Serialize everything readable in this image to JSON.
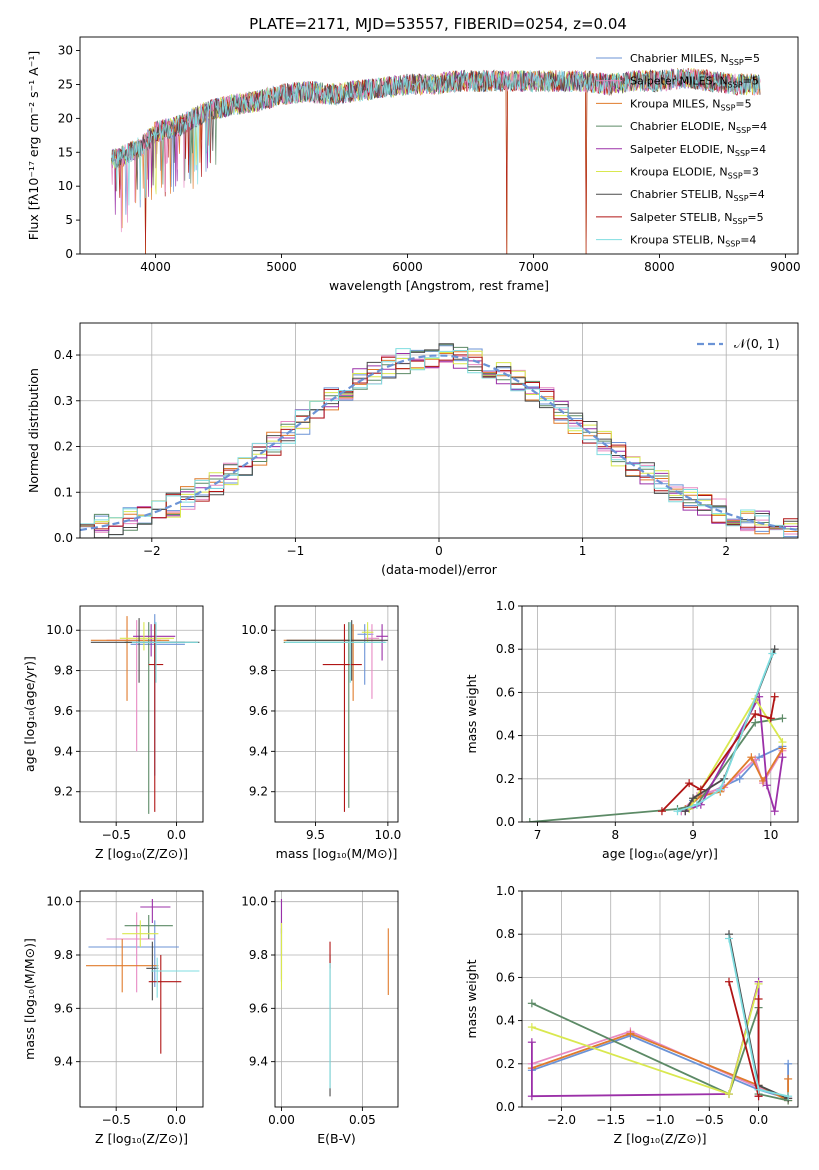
{
  "figure": {
    "title": "PLATE=2171, MJD=53557, FIBERID=0254, z=0.04"
  },
  "legend_models": [
    {
      "name": "Chabrier MILES, N",
      "sub": "SSP",
      "suffix": "=5",
      "color": "#6b93d6"
    },
    {
      "name": "Salpeter MILES, N",
      "sub": "SSP",
      "suffix": "=5",
      "color": "#e78ac3"
    },
    {
      "name": "Kroupa MILES, N",
      "sub": "SSP",
      "suffix": "=5",
      "color": "#e07b2c"
    },
    {
      "name": "Chabrier ELODIE, N",
      "sub": "SSP",
      "suffix": "=4",
      "color": "#5c8a66"
    },
    {
      "name": "Salpeter ELODIE, N",
      "sub": "SSP",
      "suffix": "=4",
      "color": "#9b30a8"
    },
    {
      "name": "Kroupa ELODIE, N",
      "sub": "SSP",
      "suffix": "=3",
      "color": "#d9e84f"
    },
    {
      "name": "Chabrier STELIB, N",
      "sub": "SSP",
      "suffix": "=4",
      "color": "#4a4a4a"
    },
    {
      "name": "Salpeter STELIB, N",
      "sub": "SSP",
      "suffix": "=5",
      "color": "#b01515"
    },
    {
      "name": "Kroupa STELIB, N",
      "sub": "SSP",
      "suffix": "=4",
      "color": "#7fdde0"
    }
  ],
  "chart_data": [
    {
      "id": "spectrum",
      "type": "line",
      "xlabel": "wavelength [Angstrom, rest frame]",
      "ylabel": "Flux [fλ10⁻¹⁷ erg cm⁻² s⁻¹ A⁻¹]",
      "xlim": [
        3400,
        9100
      ],
      "ylim": [
        0,
        32
      ],
      "xticks": [
        4000,
        5000,
        6000,
        7000,
        8000,
        9000
      ],
      "yticks": [
        0,
        5,
        10,
        15,
        20,
        25,
        30
      ],
      "grid": false,
      "legend": "right",
      "envelope": {
        "x": [
          3650,
          3700,
          3800,
          3900,
          4000,
          4200,
          4400,
          4600,
          4800,
          5000,
          5200,
          5400,
          5600,
          5800,
          6000,
          6200,
          6400,
          6600,
          6800,
          7000,
          7200,
          7400,
          7600,
          7800,
          8000,
          8200,
          8400,
          8600,
          8800
        ],
        "y": [
          14,
          14,
          15,
          16,
          18,
          19,
          21,
          22,
          22.5,
          23.5,
          24,
          23.5,
          24,
          24.5,
          25,
          25,
          25.5,
          25.5,
          25.5,
          25.5,
          25.5,
          25.5,
          25,
          25.5,
          25.5,
          26,
          25.5,
          25,
          25
        ]
      },
      "dropouts": [
        3920,
        6790,
        7420
      ]
    },
    {
      "id": "residuals",
      "type": "step",
      "xlabel": "(data-model)/error",
      "ylabel": "Normed distribution",
      "xlim": [
        -2.5,
        2.5
      ],
      "ylim": [
        0,
        0.47
      ],
      "xticks": [
        -2,
        -1,
        0,
        1,
        2
      ],
      "yticks": [
        0.0,
        0.1,
        0.2,
        0.3,
        0.4
      ],
      "grid": true,
      "legend": "top-right",
      "reference": {
        "name": "𝒩(0, 1)",
        "mean": 0,
        "sigma": 1,
        "color": "#6b93d6"
      },
      "bin_width": 0.1
    },
    {
      "id": "age-vs-Z",
      "type": "errorbar",
      "xlabel": "Z [log₁₀(Z/Z⊙)]",
      "ylabel": "age  [log₁₀(age/yr)]",
      "xlim": [
        -0.8,
        0.22
      ],
      "ylim": [
        9.05,
        10.12
      ],
      "xticks": [
        -0.5,
        0.0
      ],
      "yticks": [
        9.2,
        9.4,
        9.6,
        9.8,
        10.0
      ],
      "grid": true,
      "points": [
        {
          "x": -0.18,
          "xerr": [
            0.2,
            0.25
          ],
          "y": 9.93,
          "yerr": [
            0.65,
            0.15
          ]
        },
        {
          "x": -0.33,
          "xerr": [
            0.25,
            0.2
          ],
          "y": 9.95,
          "yerr": [
            0.55,
            0.1
          ]
        },
        {
          "x": -0.41,
          "xerr": [
            0.3,
            0.35
          ],
          "y": 9.95,
          "yerr": [
            0.3,
            0.12
          ]
        },
        {
          "x": -0.23,
          "xerr": [
            0.2,
            0.3
          ],
          "y": 9.94,
          "yerr": [
            0.85,
            0.1
          ]
        },
        {
          "x": -0.21,
          "xerr": [
            0.15,
            0.2
          ],
          "y": 9.97,
          "yerr": [
            0.1,
            0.06
          ]
        },
        {
          "x": -0.27,
          "xerr": [
            0.2,
            0.25
          ],
          "y": 9.96,
          "yerr": [
            0.06,
            0.08
          ]
        },
        {
          "x": -0.31,
          "xerr": [
            0.4,
            0.5
          ],
          "y": 9.94,
          "yerr": [
            0.2,
            0.12
          ]
        },
        {
          "x": -0.18,
          "xerr": [
            0.05,
            0.07
          ],
          "y": 9.83,
          "yerr": [
            0.73,
            0.2
          ]
        },
        {
          "x": -0.17,
          "xerr": [
            0.2,
            0.35
          ],
          "y": 9.94,
          "yerr": [
            0.2,
            0.1
          ]
        }
      ]
    },
    {
      "id": "age-vs-mass",
      "type": "errorbar",
      "xlabel": "mass [log₁₀(M/M⊙)]",
      "ylabel": "",
      "xlim": [
        9.22,
        10.07
      ],
      "ylim": [
        9.05,
        10.12
      ],
      "xticks": [
        9.5,
        10.0
      ],
      "yticks": [
        9.2,
        9.4,
        9.6,
        9.8,
        10.0
      ],
      "grid": true,
      "points": [
        {
          "x": 9.84,
          "xerr": [
            0.05,
            0.06
          ],
          "y": 9.98,
          "yerr": [
            0.25,
            0.05
          ]
        },
        {
          "x": 9.89,
          "xerr": [
            0.05,
            0.05
          ],
          "y": 9.96,
          "yerr": [
            0.3,
            0.07
          ]
        },
        {
          "x": 9.76,
          "xerr": [
            0.48,
            0.2
          ],
          "y": 9.95,
          "yerr": [
            0.3,
            0.08
          ]
        },
        {
          "x": 9.73,
          "xerr": [
            0.45,
            0.25
          ],
          "y": 9.94,
          "yerr": [
            0.82,
            0.1
          ]
        },
        {
          "x": 9.96,
          "xerr": [
            0.04,
            0.04
          ],
          "y": 9.97,
          "yerr": [
            0.12,
            0.06
          ]
        },
        {
          "x": 9.86,
          "xerr": [
            0.04,
            0.04
          ],
          "y": 9.99,
          "yerr": [
            0.05,
            0.05
          ]
        },
        {
          "x": 9.75,
          "xerr": [
            0.45,
            0.25
          ],
          "y": 9.95,
          "yerr": [
            0.2,
            0.1
          ]
        },
        {
          "x": 9.7,
          "xerr": [
            0.15,
            0.12
          ],
          "y": 9.83,
          "yerr": [
            0.73,
            0.2
          ]
        },
        {
          "x": 9.74,
          "xerr": [
            0.45,
            0.25
          ],
          "y": 9.94,
          "yerr": [
            0.2,
            0.1
          ]
        }
      ]
    },
    {
      "id": "massweight-vs-age",
      "type": "line",
      "xlabel": "age  [log₁₀(age/yr)]",
      "ylabel": "mass weight",
      "xlim": [
        6.8,
        10.35
      ],
      "ylim": [
        0,
        1.0
      ],
      "xticks": [
        7,
        8,
        9,
        10
      ],
      "yticks": [
        0.0,
        0.2,
        0.4,
        0.6,
        0.8,
        1.0
      ],
      "grid": true,
      "series": [
        {
          "x": [
            8.85,
            9.0,
            9.6,
            9.85,
            10.15
          ],
          "y": [
            0.05,
            0.1,
            0.2,
            0.3,
            0.35
          ]
        },
        {
          "x": [
            8.85,
            9.05,
            9.4,
            9.8,
            9.9,
            10.15
          ],
          "y": [
            0.05,
            0.12,
            0.16,
            0.29,
            0.18,
            0.33
          ]
        },
        {
          "x": [
            8.9,
            9.1,
            9.35,
            9.75,
            9.9,
            10.15
          ],
          "y": [
            0.06,
            0.12,
            0.14,
            0.3,
            0.19,
            0.34
          ]
        },
        {
          "x": [
            6.9,
            8.8,
            9.05,
            9.8,
            10.15
          ],
          "y": [
            0.0,
            0.06,
            0.08,
            0.46,
            0.48
          ]
        },
        {
          "x": [
            8.9,
            9.1,
            9.85,
            9.95,
            10.05,
            10.15
          ],
          "y": [
            0.05,
            0.08,
            0.58,
            0.17,
            0.05,
            0.3
          ]
        },
        {
          "x": [
            8.95,
            9.8,
            10.15
          ],
          "y": [
            0.06,
            0.57,
            0.37
          ]
        },
        {
          "x": [
            8.9,
            9.0,
            9.4,
            10.05
          ],
          "y": [
            0.05,
            0.11,
            0.2,
            0.8
          ]
        },
        {
          "x": [
            8.6,
            8.95,
            9.1,
            9.8,
            10.0,
            10.05
          ],
          "y": [
            0.05,
            0.18,
            0.15,
            0.5,
            0.48,
            0.58
          ]
        },
        {
          "x": [
            8.8,
            9.05,
            9.35,
            10.02
          ],
          "y": [
            0.05,
            0.08,
            0.15,
            0.78
          ]
        }
      ]
    },
    {
      "id": "mass-vs-Z",
      "type": "errorbar",
      "xlabel": "Z [log₁₀(Z/Z⊙)]",
      "ylabel": "mass [log₁₀(M/M⊙)]",
      "xlim": [
        -0.8,
        0.22
      ],
      "ylim": [
        9.23,
        10.04
      ],
      "xticks": [
        -0.5,
        0.0
      ],
      "yticks": [
        9.4,
        9.6,
        9.8,
        10.0
      ],
      "grid": true,
      "points": [
        {
          "x": -0.18,
          "xerr": [
            0.55,
            0.2
          ],
          "y": 9.83,
          "yerr": [
            0.15,
            0.1
          ]
        },
        {
          "x": -0.33,
          "xerr": [
            0.25,
            0.15
          ],
          "y": 9.86,
          "yerr": [
            0.2,
            0.1
          ]
        },
        {
          "x": -0.45,
          "xerr": [
            0.3,
            0.3
          ],
          "y": 9.76,
          "yerr": [
            0.1,
            0.1
          ]
        },
        {
          "x": -0.23,
          "xerr": [
            0.2,
            0.2
          ],
          "y": 9.91,
          "yerr": [
            0.05,
            0.04
          ]
        },
        {
          "x": -0.2,
          "xerr": [
            0.1,
            0.15
          ],
          "y": 9.98,
          "yerr": [
            0.06,
            0.03
          ]
        },
        {
          "x": -0.3,
          "xerr": [
            0.15,
            0.15
          ],
          "y": 9.88,
          "yerr": [
            0.05,
            0.05
          ]
        },
        {
          "x": -0.2,
          "xerr": [
            0.05,
            0.05
          ],
          "y": 9.75,
          "yerr": [
            0.12,
            0.1
          ]
        },
        {
          "x": -0.13,
          "xerr": [
            0.1,
            0.17
          ],
          "y": 9.7,
          "yerr": [
            0.27,
            0.1
          ]
        },
        {
          "x": -0.16,
          "xerr": [
            0.05,
            0.35
          ],
          "y": 9.74,
          "yerr": [
            0.1,
            0.05
          ]
        }
      ]
    },
    {
      "id": "mass-vs-ebv",
      "type": "errorbar",
      "xlabel": "E(B-V)",
      "ylabel": "",
      "xlim": [
        -0.004,
        0.072
      ],
      "ylim": [
        9.23,
        10.04
      ],
      "xticks": [
        0.0,
        0.05
      ],
      "yticks": [
        9.4,
        9.6,
        9.8,
        10.0
      ],
      "grid": true,
      "points": [
        {
          "x": 0.0,
          "y": 9.9,
          "yerr": [
            0.1,
            0.1
          ]
        },
        {
          "x": 0.0,
          "y": 9.86,
          "yerr": [
            0.15,
            0.06
          ]
        },
        {
          "x": 0.066,
          "y": 9.8,
          "yerr": [
            0.15,
            0.1
          ]
        },
        {
          "x": 0.0,
          "y": 9.8,
          "yerr": [
            0.1,
            0.1
          ]
        },
        {
          "x": 0.0,
          "y": 9.94,
          "yerr": [
            0.06,
            0.07
          ]
        },
        {
          "x": 0.0,
          "y": 9.82,
          "yerr": [
            0.15,
            0.1
          ]
        },
        {
          "x": 0.03,
          "y": 9.55,
          "yerr": [
            0.28,
            0.25
          ]
        },
        {
          "x": 0.03,
          "y": 9.8,
          "yerr": [
            0.05,
            0.05
          ]
        },
        {
          "x": 0.03,
          "y": 9.55,
          "yerr": [
            0.25,
            0.22
          ]
        }
      ]
    },
    {
      "id": "massweight-vs-Z",
      "type": "line",
      "xlabel": "Z [log₁₀(Z/Z⊙)]",
      "ylabel": "mass weight",
      "xlim": [
        -2.4,
        0.4
      ],
      "ylim": [
        0,
        1.0
      ],
      "xticks": [
        -2.0,
        -1.5,
        -1.0,
        -0.5,
        0.0
      ],
      "yticks": [
        0.0,
        0.2,
        0.4,
        0.6,
        0.8,
        1.0
      ],
      "grid": true,
      "series": [
        {
          "x": [
            -2.3,
            -1.3,
            0.0,
            0.3,
            0.3
          ],
          "y": [
            0.17,
            0.33,
            0.08,
            0.04,
            0.2
          ]
        },
        {
          "x": [
            -2.3,
            -1.3,
            0.0,
            0.3
          ],
          "y": [
            0.2,
            0.35,
            0.09,
            0.04
          ]
        },
        {
          "x": [
            -2.3,
            -1.3,
            0.0,
            0.3,
            0.3
          ],
          "y": [
            0.18,
            0.34,
            0.1,
            0.03,
            0.13
          ]
        },
        {
          "x": [
            -2.3,
            -0.3,
            0.0,
            0.0,
            0.3
          ],
          "y": [
            0.48,
            0.06,
            0.46,
            0.06,
            0.03
          ]
        },
        {
          "x": [
            -2.3,
            -2.3,
            -0.3,
            0.0,
            0.0
          ],
          "y": [
            0.3,
            0.05,
            0.06,
            0.58,
            0.05
          ]
        },
        {
          "x": [
            -2.3,
            -0.3,
            0.0
          ],
          "y": [
            0.37,
            0.06,
            0.57
          ]
        },
        {
          "x": [
            -0.3,
            0.0,
            0.3
          ],
          "y": [
            0.8,
            0.1,
            0.04
          ]
        },
        {
          "x": [
            -0.3,
            0.0,
            0.0
          ],
          "y": [
            0.58,
            0.05,
            0.5
          ]
        },
        {
          "x": [
            -0.3,
            0.0,
            0.3
          ],
          "y": [
            0.78,
            0.08,
            0.05
          ]
        }
      ]
    }
  ]
}
